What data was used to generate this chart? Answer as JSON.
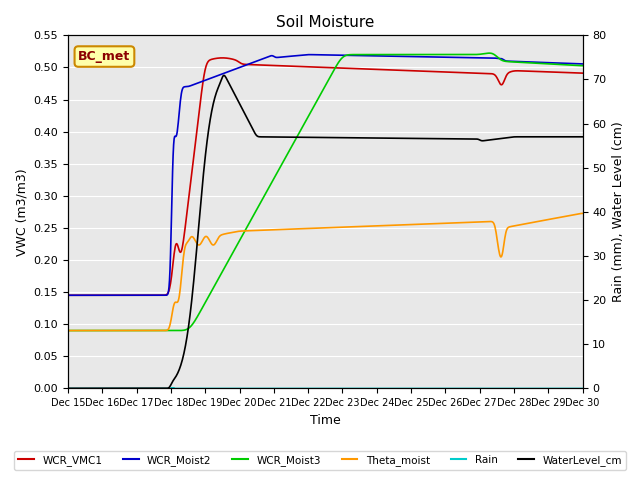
{
  "title": "Soil Moisture",
  "xlabel": "Time",
  "ylabel_left": "VWC (m3/m3)",
  "ylabel_right": "Rain (mm), Water Level (cm)",
  "ylim_left": [
    0.0,
    0.55
  ],
  "ylim_right": [
    0,
    80
  ],
  "yticks_left": [
    0.0,
    0.05,
    0.1,
    0.15,
    0.2,
    0.25,
    0.3,
    0.35,
    0.4,
    0.45,
    0.5,
    0.55
  ],
  "yticks_right": [
    0,
    10,
    20,
    30,
    40,
    50,
    60,
    70,
    80
  ],
  "xtick_labels": [
    "Dec 15",
    "Dec 16",
    "Dec 17",
    "Dec 18",
    "Dec 19",
    "Dec 20",
    "Dec 21",
    "Dec 22",
    "Dec 23",
    "Dec 24",
    "Dec 25",
    "Dec 26",
    "Dec 27",
    "Dec 28",
    "Dec 29",
    "Dec 30"
  ],
  "annotation_text": "BC_met",
  "colors": {
    "WCR_VMC1": "#cc0000",
    "WCR_Moist2": "#0000cc",
    "WCR_Moist3": "#00cc00",
    "Theta_moist": "#ff9900",
    "Rain": "#00cccc",
    "WaterLevel_cm": "#000000"
  },
  "background_color": "#e8e8e8",
  "plot_bg_color": "#f0f0f0"
}
